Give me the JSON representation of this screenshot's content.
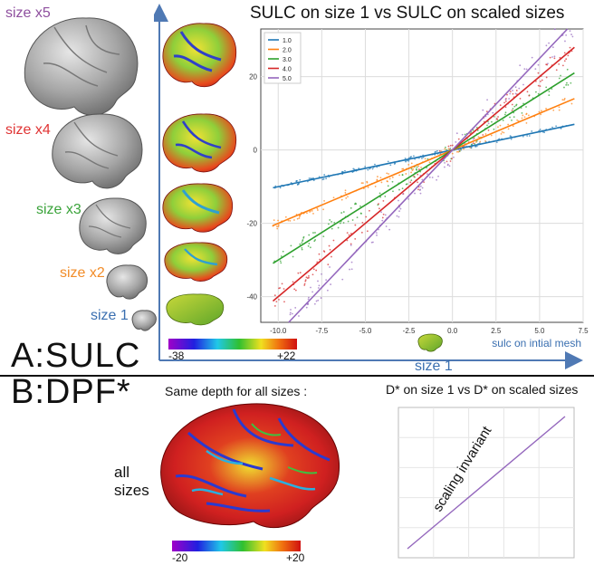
{
  "colors": {
    "size_x5": "#8e4f9e",
    "size_x4": "#e03434",
    "size_x3": "#3aa33a",
    "size_x2": "#f28c28",
    "size_1": "#3a6fb0",
    "axis_arrow": "#4f79b4"
  },
  "panel_a": {
    "label": "A:SULC",
    "size_labels": [
      "size x5",
      "size x4",
      "size x3",
      "size x2",
      "size 1"
    ],
    "x_axis_label": "size 1",
    "colorbar": {
      "min_label": "-38",
      "max_label": "+22"
    }
  },
  "panel_b": {
    "label": "B:DPF*",
    "heading": "Same depth  for all  sizes :",
    "all_sizes_label": "all\nsizes",
    "colorbar": {
      "min_label": "-20",
      "max_label": "+20"
    },
    "annotation": "scaling invariant"
  },
  "chart_data": [
    {
      "type": "scatter",
      "title": "SULC on size 1 vs SULC on scaled sizes",
      "xlabel": "sulc on intial mesh",
      "ylabel": "",
      "xlim": [
        -11,
        7.5
      ],
      "ylim": [
        -47,
        33
      ],
      "x_ticks": [
        -10.0,
        -7.5,
        -5.0,
        -2.5,
        0.0,
        2.5,
        5.0,
        7.5
      ],
      "y_ticks": [
        -40,
        -20,
        0,
        20
      ],
      "x_tick_labels": [
        "-10.0",
        "-7.5",
        "-5.0",
        "-2.5",
        "0.0",
        "2.5",
        "5.0",
        "7.5"
      ],
      "y_tick_labels": [
        "-40",
        "-20",
        "0",
        "20"
      ],
      "grid": true,
      "legend_position": "top-left",
      "series": [
        {
          "name": "1.0",
          "color": "#1f77b4",
          "x": [
            -10.3,
            7.0
          ],
          "y": [
            -10.3,
            7.0
          ]
        },
        {
          "name": "2.0",
          "color": "#ff7f0e",
          "x": [
            -10.3,
            7.0
          ],
          "y": [
            -20.6,
            14.0
          ]
        },
        {
          "name": "3.0",
          "color": "#2ca02c",
          "x": [
            -10.3,
            7.0
          ],
          "y": [
            -30.9,
            21.0
          ]
        },
        {
          "name": "4.0",
          "color": "#d62728",
          "x": [
            -10.3,
            7.0
          ],
          "y": [
            -41.2,
            28.0
          ]
        },
        {
          "name": "5.0",
          "color": "#9467bd",
          "x": [
            -10.3,
            7.0
          ],
          "y": [
            -51.5,
            35.0
          ]
        }
      ]
    },
    {
      "type": "scatter",
      "title": "D* on size 1 vs D* on scaled sizes",
      "xlabel": "",
      "ylabel": "",
      "grid": true,
      "series": [
        {
          "color": "#9467bd",
          "x": [
            -20,
            20
          ],
          "y": [
            -20,
            20
          ]
        }
      ]
    }
  ]
}
